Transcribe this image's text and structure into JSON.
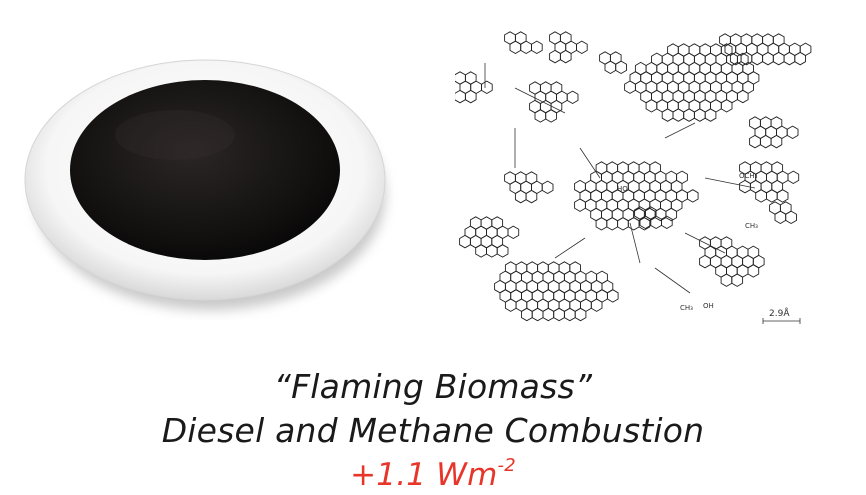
{
  "image": {
    "photo_subject": "filter-disc",
    "diagram_subject": "soot-molecular-structure",
    "scale_bar_label": "2.9Å",
    "diagram_fragment_labels": [
      "CH₃",
      "HO",
      "OCH₃",
      "OH"
    ]
  },
  "caption": {
    "line1": "“Flaming Biomass”",
    "line2": "Diesel and Methane Combustion",
    "forcing_value": "+1.1 Wm",
    "forcing_exponent": "-2",
    "forcing_color": "#e8352a"
  }
}
